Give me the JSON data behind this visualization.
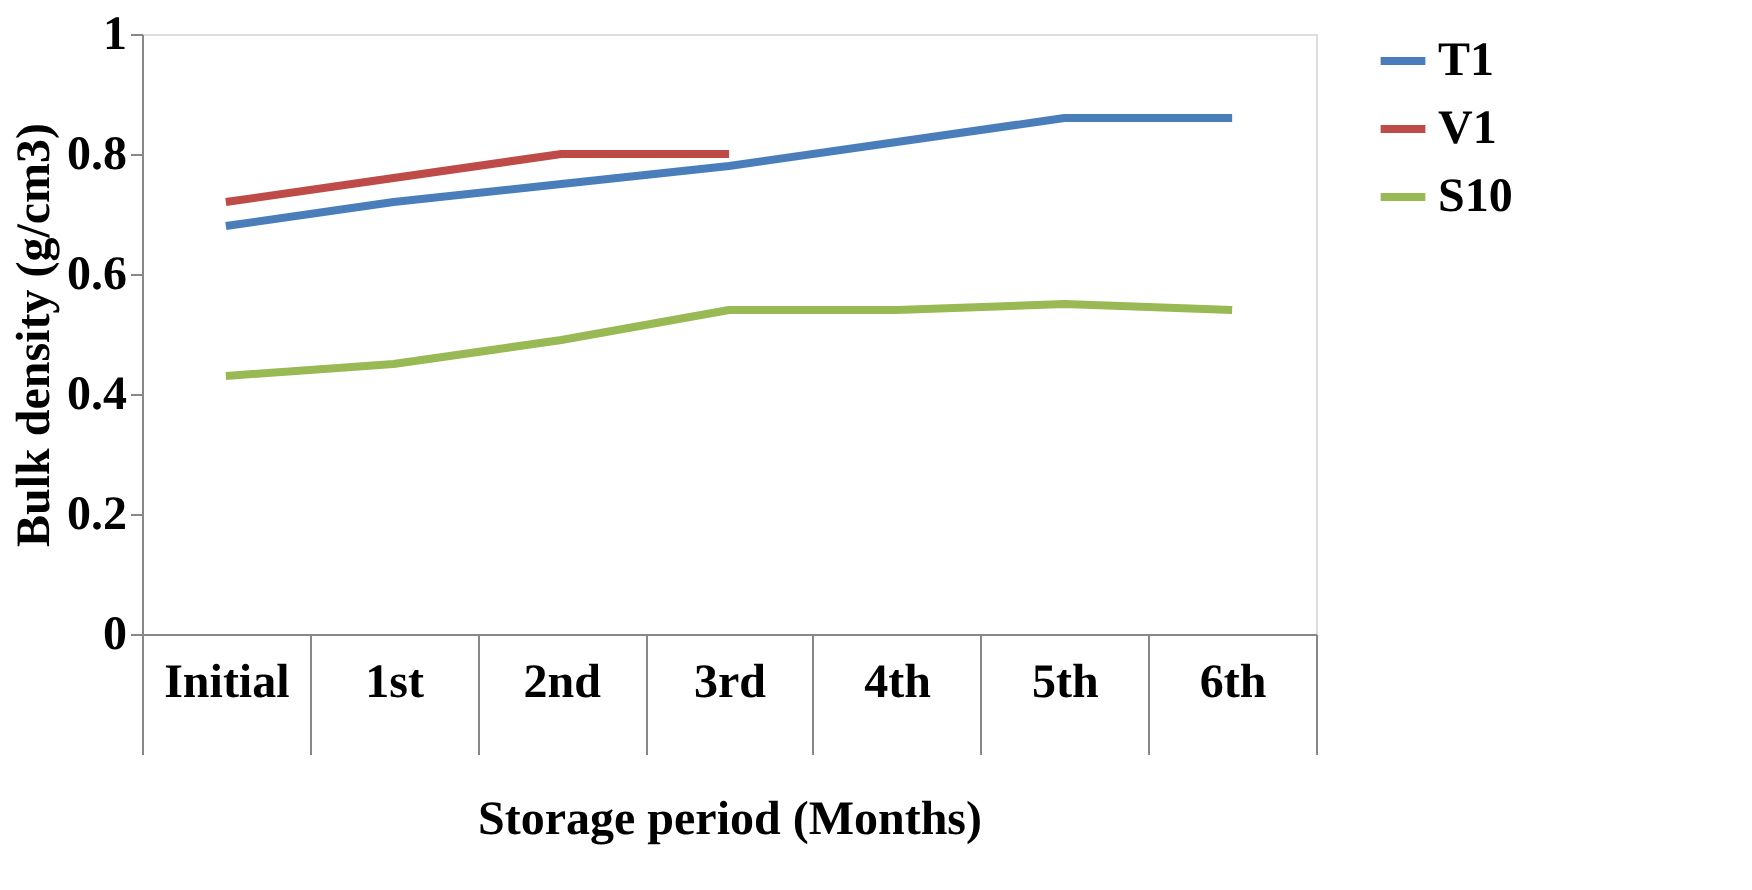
{
  "chart_data": {
    "type": "line",
    "xlabel": "Storage period (Months)",
    "ylabel": "Bulk density (g/cm3)",
    "categories": [
      "Initial",
      "1st",
      "2nd",
      "3rd",
      "4th",
      "5th",
      "6th"
    ],
    "series": [
      {
        "name": "T1",
        "color": "#4a7ebb",
        "values": [
          0.68,
          0.72,
          0.75,
          0.78,
          0.82,
          0.86,
          0.86
        ]
      },
      {
        "name": "V1",
        "color": "#be4b48",
        "values": [
          0.72,
          0.76,
          0.8,
          0.8,
          null,
          null,
          null
        ]
      },
      {
        "name": "S10",
        "color": "#98b954",
        "values": [
          0.43,
          0.45,
          0.49,
          0.54,
          0.54,
          0.55,
          0.54
        ]
      }
    ],
    "ylim": [
      0,
      1
    ],
    "yticks": [
      0,
      0.2,
      0.4,
      0.6,
      0.8,
      1
    ],
    "grid": false,
    "legend": "right",
    "marker": "none",
    "line_style": "solid"
  }
}
